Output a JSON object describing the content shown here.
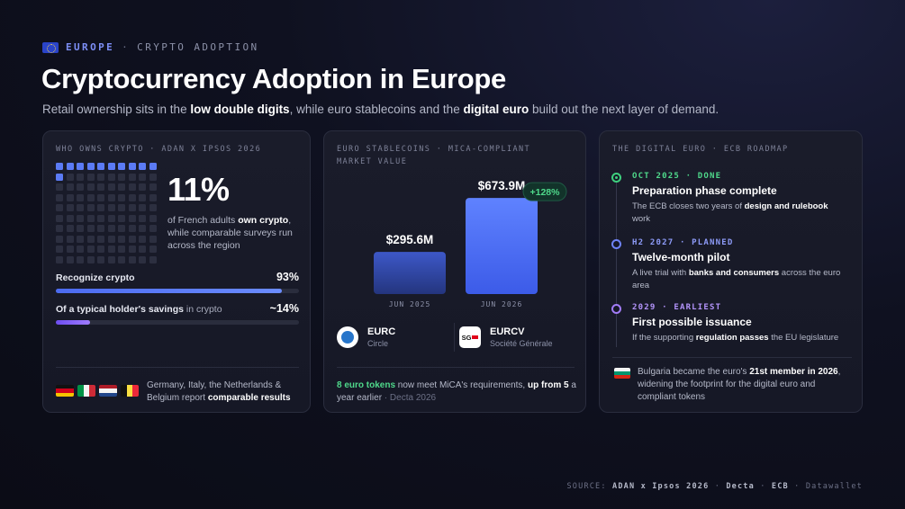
{
  "header": {
    "kicker_primary": "EUROPE",
    "kicker_sep": "·",
    "kicker_secondary": "CRYPTO ADOPTION",
    "title": "Cryptocurrency Adoption in Europe",
    "subtitle": {
      "p1": "Retail ownership sits in the ",
      "b1": "low double digits",
      "p2": ", while euro stablecoins and the ",
      "b2": "digital euro",
      "p3": " build out the next layer of demand."
    }
  },
  "ownership": {
    "label": "WHO OWNS CRYPTO · ADAN X IPSOS 2026",
    "share_value": "11%",
    "share_fraction": 0.11,
    "desc_p1": "of French adults ",
    "desc_b": "own crypto",
    "desc_p2": ", while comparable surveys run across the region",
    "bars": [
      {
        "label_bold": "Recognize crypto",
        "label_rest": "",
        "value": "93%",
        "fraction": 0.93
      },
      {
        "label_bold": "Of a typical holder's savings",
        "label_rest": " in crypto",
        "value": "~14%",
        "fraction": 0.14
      }
    ],
    "countries": [
      "Germany",
      "Italy",
      "Netherlands",
      "Belgium"
    ],
    "note_p1": "Germany, Italy, the Netherlands & Belgium report ",
    "note_b": "comparable results"
  },
  "chart_data": {
    "type": "bar",
    "title": "EURO STABLECOINS · MICA-COMPLIANT MARKET VALUE",
    "categories": [
      "JUN 2025",
      "JUN 2026"
    ],
    "values": [
      295.6,
      673.9
    ],
    "value_labels": [
      "$295.6M",
      "$673.9M"
    ],
    "unit": "$M",
    "ylim": [
      0,
      700
    ],
    "change_badge": "+128%",
    "grid": false,
    "xlabel": "",
    "ylabel": "",
    "colors": [
      "#3a55c4",
      "#5b7cff"
    ]
  },
  "stablecoins": {
    "coins": [
      {
        "name": "EURC",
        "issuer": "Circle",
        "logo_text": ""
      },
      {
        "name": "EURCV",
        "issuer": "Société Générale",
        "logo_text": "SG"
      }
    ],
    "note_green": "8 euro tokens",
    "note_p1": " now meet MiCA's requirements, ",
    "note_b": "up from 5",
    "note_p2": " a year earlier",
    "note_src": " · Decta 2026"
  },
  "digital_euro": {
    "label": "THE DIGITAL EURO · ECB ROADMAP",
    "milestones": [
      {
        "tag": "OCT 2025 · DONE",
        "title": "Preparation phase complete",
        "desc_p1": "The ECB closes two years of ",
        "desc_b": "design and rulebook",
        "desc_p2": " work",
        "color": "#3ed07e"
      },
      {
        "tag": "H2 2027 · PLANNED",
        "title": "Twelve-month pilot",
        "desc_p1": "A live trial with ",
        "desc_b": "banks and consumers",
        "desc_p2": " across the euro area",
        "color": "#6f83f7"
      },
      {
        "tag": "2029 · EARLIEST",
        "title": "First possible issuance",
        "desc_p1": "If the supporting ",
        "desc_b": "regulation passes",
        "desc_p2": " the EU legislature",
        "color": "#a27cf7"
      }
    ],
    "note_p1": "Bulgaria became the euro's ",
    "note_b": "21st member in 2026",
    "note_p2": ", widening the footprint for the digital euro and compliant tokens"
  },
  "footer": {
    "prefix": "SOURCE: ",
    "s1": "ADAN x Ipsos 2026",
    "s2": "Decta",
    "s3": "ECB",
    "s4": "Datawallet",
    "sep": " · "
  }
}
